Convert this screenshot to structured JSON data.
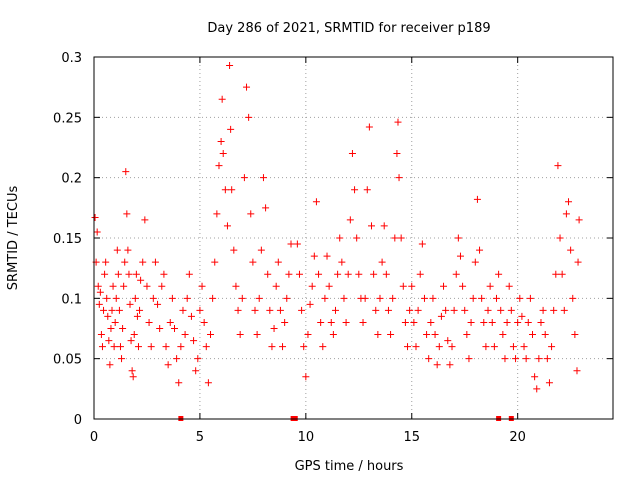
{
  "chart_data": {
    "type": "scatter",
    "title": "Day 286 of 2021, SRMTID for receiver p189",
    "xlabel": "GPS time / hours",
    "ylabel": "SRMTID / TECUs",
    "xlim": [
      0,
      24.5
    ],
    "ylim": [
      0,
      0.3
    ],
    "xticks": [
      0,
      5,
      10,
      15,
      20
    ],
    "xtick_labels": [
      "0",
      "5",
      "10",
      "15",
      "20"
    ],
    "yticks": [
      0,
      0.05,
      0.1,
      0.15,
      0.2,
      0.25,
      0.3
    ],
    "ytick_labels": [
      "0",
      "0.05",
      "0.1",
      "0.15",
      "0.2",
      "0.25",
      "0.3"
    ],
    "grid": true,
    "marker": "+",
    "series_color": "#ff0000",
    "data_gap_markers_x": [
      4.1,
      9.4,
      9.5,
      19.1,
      19.7
    ],
    "series": [
      {
        "name": "SRMTID",
        "points": [
          [
            0.05,
            0.167
          ],
          [
            0.1,
            0.13
          ],
          [
            0.15,
            0.155
          ],
          [
            0.2,
            0.11
          ],
          [
            0.25,
            0.095
          ],
          [
            0.3,
            0.105
          ],
          [
            0.35,
            0.07
          ],
          [
            0.4,
            0.06
          ],
          [
            0.45,
            0.09
          ],
          [
            0.5,
            0.12
          ],
          [
            0.55,
            0.13
          ],
          [
            0.6,
            0.1
          ],
          [
            0.65,
            0.085
          ],
          [
            0.7,
            0.065
          ],
          [
            0.75,
            0.045
          ],
          [
            0.8,
            0.075
          ],
          [
            0.85,
            0.09
          ],
          [
            0.9,
            0.11
          ],
          [
            0.95,
            0.06
          ],
          [
            1.0,
            0.08
          ],
          [
            1.05,
            0.1
          ],
          [
            1.1,
            0.14
          ],
          [
            1.15,
            0.12
          ],
          [
            1.2,
            0.09
          ],
          [
            1.25,
            0.06
          ],
          [
            1.3,
            0.05
          ],
          [
            1.35,
            0.075
          ],
          [
            1.4,
            0.11
          ],
          [
            1.45,
            0.13
          ],
          [
            1.5,
            0.205
          ],
          [
            1.55,
            0.17
          ],
          [
            1.6,
            0.14
          ],
          [
            1.65,
            0.12
          ],
          [
            1.7,
            0.095
          ],
          [
            1.75,
            0.065
          ],
          [
            1.8,
            0.04
          ],
          [
            1.85,
            0.035
          ],
          [
            1.9,
            0.07
          ],
          [
            1.95,
            0.1
          ],
          [
            2.0,
            0.12
          ],
          [
            2.05,
            0.085
          ],
          [
            2.1,
            0.06
          ],
          [
            2.15,
            0.09
          ],
          [
            2.2,
            0.115
          ],
          [
            2.3,
            0.13
          ],
          [
            2.4,
            0.165
          ],
          [
            2.5,
            0.11
          ],
          [
            2.6,
            0.08
          ],
          [
            2.7,
            0.06
          ],
          [
            2.8,
            0.1
          ],
          [
            2.9,
            0.13
          ],
          [
            3.0,
            0.095
          ],
          [
            3.1,
            0.075
          ],
          [
            3.2,
            0.11
          ],
          [
            3.3,
            0.12
          ],
          [
            3.4,
            0.06
          ],
          [
            3.5,
            0.045
          ],
          [
            3.6,
            0.08
          ],
          [
            3.7,
            0.1
          ],
          [
            3.8,
            0.075
          ],
          [
            3.9,
            0.05
          ],
          [
            4.0,
            0.03
          ],
          [
            4.1,
            0.06
          ],
          [
            4.2,
            0.09
          ],
          [
            4.3,
            0.07
          ],
          [
            4.4,
            0.1
          ],
          [
            4.5,
            0.12
          ],
          [
            4.6,
            0.085
          ],
          [
            4.7,
            0.065
          ],
          [
            4.8,
            0.04
          ],
          [
            4.9,
            0.05
          ],
          [
            5.0,
            0.09
          ],
          [
            5.1,
            0.11
          ],
          [
            5.2,
            0.08
          ],
          [
            5.3,
            0.06
          ],
          [
            5.4,
            0.03
          ],
          [
            5.5,
            0.07
          ],
          [
            5.6,
            0.1
          ],
          [
            5.7,
            0.13
          ],
          [
            5.8,
            0.17
          ],
          [
            5.9,
            0.21
          ],
          [
            6.0,
            0.23
          ],
          [
            6.05,
            0.265
          ],
          [
            6.1,
            0.22
          ],
          [
            6.2,
            0.19
          ],
          [
            6.3,
            0.16
          ],
          [
            6.4,
            0.293
          ],
          [
            6.45,
            0.24
          ],
          [
            6.5,
            0.19
          ],
          [
            6.6,
            0.14
          ],
          [
            6.7,
            0.11
          ],
          [
            6.8,
            0.09
          ],
          [
            6.9,
            0.07
          ],
          [
            7.0,
            0.1
          ],
          [
            7.1,
            0.2
          ],
          [
            7.2,
            0.275
          ],
          [
            7.3,
            0.25
          ],
          [
            7.4,
            0.17
          ],
          [
            7.5,
            0.13
          ],
          [
            7.6,
            0.09
          ],
          [
            7.7,
            0.07
          ],
          [
            7.8,
            0.1
          ],
          [
            7.9,
            0.14
          ],
          [
            8.0,
            0.2
          ],
          [
            8.1,
            0.175
          ],
          [
            8.2,
            0.12
          ],
          [
            8.3,
            0.09
          ],
          [
            8.4,
            0.06
          ],
          [
            8.5,
            0.075
          ],
          [
            8.6,
            0.11
          ],
          [
            8.7,
            0.13
          ],
          [
            8.8,
            0.09
          ],
          [
            8.9,
            0.06
          ],
          [
            9.0,
            0.08
          ],
          [
            9.1,
            0.1
          ],
          [
            9.2,
            0.12
          ],
          [
            9.3,
            0.145
          ],
          [
            9.6,
            0.145
          ],
          [
            9.7,
            0.12
          ],
          [
            9.8,
            0.09
          ],
          [
            9.9,
            0.06
          ],
          [
            10.0,
            0.035
          ],
          [
            10.1,
            0.07
          ],
          [
            10.2,
            0.095
          ],
          [
            10.3,
            0.11
          ],
          [
            10.4,
            0.135
          ],
          [
            10.5,
            0.18
          ],
          [
            10.6,
            0.12
          ],
          [
            10.7,
            0.08
          ],
          [
            10.8,
            0.06
          ],
          [
            10.9,
            0.1
          ],
          [
            11.0,
            0.135
          ],
          [
            11.1,
            0.11
          ],
          [
            11.2,
            0.08
          ],
          [
            11.3,
            0.07
          ],
          [
            11.4,
            0.09
          ],
          [
            11.5,
            0.12
          ],
          [
            11.6,
            0.15
          ],
          [
            11.7,
            0.13
          ],
          [
            11.8,
            0.1
          ],
          [
            11.9,
            0.08
          ],
          [
            12.0,
            0.12
          ],
          [
            12.1,
            0.165
          ],
          [
            12.2,
            0.22
          ],
          [
            12.3,
            0.19
          ],
          [
            12.4,
            0.15
          ],
          [
            12.5,
            0.12
          ],
          [
            12.6,
            0.1
          ],
          [
            12.7,
            0.08
          ],
          [
            12.8,
            0.1
          ],
          [
            12.9,
            0.19
          ],
          [
            13.0,
            0.242
          ],
          [
            13.1,
            0.16
          ],
          [
            13.2,
            0.12
          ],
          [
            13.3,
            0.09
          ],
          [
            13.4,
            0.07
          ],
          [
            13.5,
            0.1
          ],
          [
            13.6,
            0.13
          ],
          [
            13.7,
            0.16
          ],
          [
            13.8,
            0.12
          ],
          [
            13.9,
            0.09
          ],
          [
            14.0,
            0.07
          ],
          [
            14.1,
            0.1
          ],
          [
            14.2,
            0.15
          ],
          [
            14.3,
            0.22
          ],
          [
            14.35,
            0.246
          ],
          [
            14.4,
            0.2
          ],
          [
            14.5,
            0.15
          ],
          [
            14.6,
            0.11
          ],
          [
            14.7,
            0.08
          ],
          [
            14.8,
            0.06
          ],
          [
            14.9,
            0.09
          ],
          [
            15.0,
            0.11
          ],
          [
            15.1,
            0.08
          ],
          [
            15.2,
            0.06
          ],
          [
            15.3,
            0.09
          ],
          [
            15.4,
            0.12
          ],
          [
            15.5,
            0.145
          ],
          [
            15.6,
            0.1
          ],
          [
            15.7,
            0.07
          ],
          [
            15.8,
            0.05
          ],
          [
            15.9,
            0.08
          ],
          [
            16.0,
            0.1
          ],
          [
            16.1,
            0.07
          ],
          [
            16.2,
            0.045
          ],
          [
            16.3,
            0.06
          ],
          [
            16.4,
            0.085
          ],
          [
            16.5,
            0.11
          ],
          [
            16.6,
            0.09
          ],
          [
            16.7,
            0.065
          ],
          [
            16.8,
            0.045
          ],
          [
            16.9,
            0.06
          ],
          [
            17.0,
            0.09
          ],
          [
            17.1,
            0.12
          ],
          [
            17.2,
            0.15
          ],
          [
            17.3,
            0.135
          ],
          [
            17.4,
            0.11
          ],
          [
            17.5,
            0.09
          ],
          [
            17.6,
            0.07
          ],
          [
            17.7,
            0.05
          ],
          [
            17.8,
            0.08
          ],
          [
            17.9,
            0.1
          ],
          [
            18.0,
            0.13
          ],
          [
            18.1,
            0.182
          ],
          [
            18.2,
            0.14
          ],
          [
            18.3,
            0.1
          ],
          [
            18.4,
            0.08
          ],
          [
            18.5,
            0.06
          ],
          [
            18.6,
            0.09
          ],
          [
            18.7,
            0.11
          ],
          [
            18.8,
            0.08
          ],
          [
            18.9,
            0.06
          ],
          [
            19.0,
            0.1
          ],
          [
            19.1,
            0.12
          ],
          [
            19.2,
            0.09
          ],
          [
            19.3,
            0.07
          ],
          [
            19.4,
            0.05
          ],
          [
            19.5,
            0.08
          ],
          [
            19.6,
            0.11
          ],
          [
            19.7,
            0.09
          ],
          [
            19.8,
            0.06
          ],
          [
            19.9,
            0.05
          ],
          [
            20.0,
            0.08
          ],
          [
            20.1,
            0.1
          ],
          [
            20.2,
            0.085
          ],
          [
            20.3,
            0.06
          ],
          [
            20.4,
            0.05
          ],
          [
            20.5,
            0.08
          ],
          [
            20.6,
            0.1
          ],
          [
            20.7,
            0.07
          ],
          [
            20.8,
            0.035
          ],
          [
            20.9,
            0.025
          ],
          [
            21.0,
            0.05
          ],
          [
            21.1,
            0.08
          ],
          [
            21.2,
            0.09
          ],
          [
            21.3,
            0.07
          ],
          [
            21.4,
            0.05
          ],
          [
            21.5,
            0.03
          ],
          [
            21.6,
            0.06
          ],
          [
            21.7,
            0.09
          ],
          [
            21.8,
            0.12
          ],
          [
            21.9,
            0.21
          ],
          [
            22.0,
            0.15
          ],
          [
            22.1,
            0.12
          ],
          [
            22.2,
            0.09
          ],
          [
            22.3,
            0.17
          ],
          [
            22.4,
            0.18
          ],
          [
            22.5,
            0.14
          ],
          [
            22.6,
            0.1
          ],
          [
            22.7,
            0.07
          ],
          [
            22.8,
            0.04
          ],
          [
            22.85,
            0.13
          ],
          [
            22.9,
            0.165
          ]
        ]
      }
    ]
  }
}
